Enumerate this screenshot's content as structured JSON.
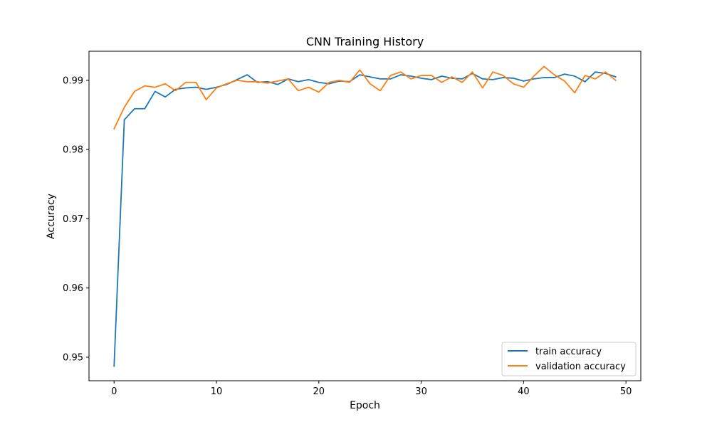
{
  "chart_data": {
    "type": "line",
    "title": "CNN Training History",
    "xlabel": "Epoch",
    "ylabel": "Accuracy",
    "xlim": [
      -2.45,
      51.45
    ],
    "ylim": [
      0.9466,
      0.9942
    ],
    "xticks": [
      0,
      10,
      20,
      30,
      40,
      50
    ],
    "yticks": [
      0.95,
      0.96,
      0.97,
      0.98,
      0.99
    ],
    "ytick_labels": [
      "0.95",
      "0.96",
      "0.97",
      "0.98",
      "0.99"
    ],
    "grid": false,
    "legend_position": "lower-right",
    "x": [
      0,
      1,
      2,
      3,
      4,
      5,
      6,
      7,
      8,
      9,
      10,
      11,
      12,
      13,
      14,
      15,
      16,
      17,
      18,
      19,
      20,
      21,
      22,
      23,
      24,
      25,
      26,
      27,
      28,
      29,
      30,
      31,
      32,
      33,
      34,
      35,
      36,
      37,
      38,
      39,
      40,
      41,
      42,
      43,
      44,
      45,
      46,
      47,
      48,
      49
    ],
    "series": [
      {
        "name": "train accuracy",
        "color": "#1f77b4",
        "values": [
          0.9487,
          0.9843,
          0.9859,
          0.9859,
          0.9884,
          0.9876,
          0.9887,
          0.9889,
          0.989,
          0.9887,
          0.989,
          0.9894,
          0.9901,
          0.9908,
          0.9897,
          0.9898,
          0.9894,
          0.9902,
          0.9898,
          0.9901,
          0.9897,
          0.9895,
          0.9899,
          0.9898,
          0.9908,
          0.9905,
          0.9902,
          0.9902,
          0.9908,
          0.9906,
          0.9903,
          0.9901,
          0.9906,
          0.9903,
          0.9902,
          0.991,
          0.9902,
          0.9901,
          0.9904,
          0.9903,
          0.9899,
          0.9902,
          0.9904,
          0.9904,
          0.9909,
          0.9906,
          0.9898,
          0.9912,
          0.991,
          0.9905
        ]
      },
      {
        "name": "validation accuracy",
        "color": "#ff7f0e",
        "values": [
          0.983,
          0.9861,
          0.9884,
          0.9892,
          0.989,
          0.9895,
          0.9885,
          0.9897,
          0.9897,
          0.9872,
          0.9889,
          0.9895,
          0.99,
          0.9898,
          0.9898,
          0.9896,
          0.9899,
          0.9902,
          0.9885,
          0.989,
          0.9883,
          0.9897,
          0.99,
          0.9897,
          0.9915,
          0.9895,
          0.9885,
          0.9907,
          0.9912,
          0.9902,
          0.9907,
          0.9907,
          0.9897,
          0.9905,
          0.9897,
          0.9912,
          0.9889,
          0.9912,
          0.9907,
          0.9895,
          0.989,
          0.9906,
          0.992,
          0.9908,
          0.9899,
          0.9882,
          0.9907,
          0.9902,
          0.9912,
          0.99
        ]
      }
    ]
  }
}
